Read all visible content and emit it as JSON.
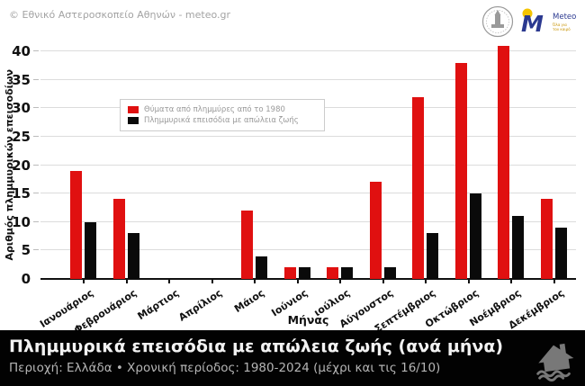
{
  "header": {
    "copyright": "© Εθνικό Αστεροσκοπείο Αθηνών - meteo.gr",
    "logos": {
      "noa_seal": "Εθνικό Αστεροσκοπείο Αθηνών",
      "meteo_name": "Meteo",
      "meteo_tagline": "Όλα για τον καιρό"
    }
  },
  "chart_data": {
    "type": "bar",
    "title": "",
    "xlabel": "Μήνας",
    "ylabel": "Αριθμός πλημμυρικών επεισοδίων",
    "ylim": [
      0,
      40
    ],
    "ytick_step": 5,
    "grid": true,
    "legend_position": "upper-left",
    "categories": [
      "Ιανουάριος",
      "Φεβρουάριος",
      "Μάρτιος",
      "Απρίλιος",
      "Μάιος",
      "Ιούνιος",
      "ιούλιος",
      "Αύγουστος",
      "Σεπτέμβριος",
      "Οκτώβριος",
      "Νοέμβριος",
      "Δεκέμβριος"
    ],
    "series": [
      {
        "name": "Θύματα από πλημμύρες από το 1980",
        "color": "#e01010",
        "values": [
          19,
          14,
          0,
          0,
          12,
          2,
          2,
          17,
          32,
          38,
          41,
          14
        ]
      },
      {
        "name": "Πλημμυρικά επεισόδια με απώλεια ζωής",
        "color": "#0a0a0a",
        "values": [
          10,
          8,
          0,
          0,
          4,
          2,
          2,
          2,
          8,
          15,
          11,
          9
        ]
      }
    ]
  },
  "footer": {
    "title": "Πλημμυρικά επεισόδια με απώλεια ζωής (ανά μήνα)",
    "subtitle": "Περιοχή: Ελλάδα • Χρονική περίοδος: 1980-2024 (μέχρι και τις 16/10)"
  },
  "colors": {
    "grid": "#dcdcdc",
    "axis": "#111111",
    "footer_bg": "#020202",
    "footer_icon": "#787878",
    "meteo_blue": "#2b3990",
    "meteo_sun": "#f5c400",
    "seal_gray": "#9a9a9a"
  }
}
